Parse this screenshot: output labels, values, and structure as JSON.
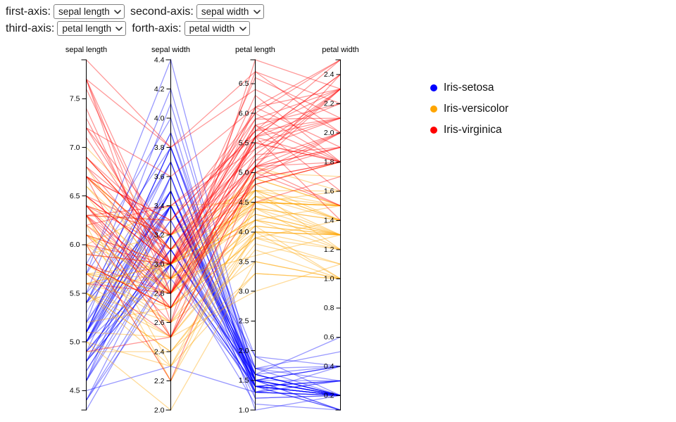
{
  "controls": [
    {
      "label": "first-axis:",
      "selected": "sepal length"
    },
    {
      "label": "second-axis:",
      "selected": "sepal width"
    },
    {
      "label": "third-axis:",
      "selected": "petal length"
    },
    {
      "label": "forth-axis:",
      "selected": "petal width"
    }
  ],
  "legend": {
    "items": [
      {
        "label": "Iris-setosa",
        "color": "#0000ff"
      },
      {
        "label": "Iris-versicolor",
        "color": "#ffa500"
      },
      {
        "label": "Iris-virginica",
        "color": "#ff0000"
      }
    ]
  },
  "chart_data": {
    "type": "parallel-coordinates",
    "grid": false,
    "legend_position": "right",
    "line_opacity": 0.4,
    "axes": [
      {
        "title": "sepal length",
        "domain": [
          4.3,
          7.9
        ],
        "ticks": [
          4.5,
          5.0,
          5.5,
          6.0,
          6.5,
          7.0,
          7.5
        ]
      },
      {
        "title": "sepal width",
        "domain": [
          2.0,
          4.4
        ],
        "ticks": [
          2.0,
          2.2,
          2.4,
          2.6,
          2.8,
          3.0,
          3.2,
          3.4,
          3.6,
          3.8,
          4.0,
          4.2,
          4.4
        ]
      },
      {
        "title": "petal length",
        "domain": [
          1.0,
          6.9
        ],
        "ticks": [
          1.0,
          1.5,
          2.0,
          2.5,
          3.0,
          3.5,
          4.0,
          4.5,
          5.0,
          5.5,
          6.0,
          6.5
        ]
      },
      {
        "title": "petal width",
        "domain": [
          0.1,
          2.5
        ],
        "ticks": [
          0.2,
          0.4,
          0.6,
          0.8,
          1.0,
          1.2,
          1.4,
          1.6,
          1.8,
          2.0,
          2.2,
          2.4
        ]
      }
    ],
    "series": [
      {
        "name": "Iris-setosa",
        "color": "#0000ff",
        "rows": [
          [
            5.1,
            3.5,
            1.4,
            0.2
          ],
          [
            4.9,
            3.0,
            1.4,
            0.2
          ],
          [
            4.7,
            3.2,
            1.3,
            0.2
          ],
          [
            4.6,
            3.1,
            1.5,
            0.2
          ],
          [
            5.0,
            3.6,
            1.4,
            0.2
          ],
          [
            5.4,
            3.9,
            1.7,
            0.4
          ],
          [
            4.6,
            3.4,
            1.4,
            0.3
          ],
          [
            5.0,
            3.4,
            1.5,
            0.2
          ],
          [
            4.4,
            2.9,
            1.4,
            0.2
          ],
          [
            4.9,
            3.1,
            1.5,
            0.1
          ],
          [
            5.4,
            3.7,
            1.5,
            0.2
          ],
          [
            4.8,
            3.4,
            1.6,
            0.2
          ],
          [
            4.8,
            3.0,
            1.4,
            0.1
          ],
          [
            4.3,
            3.0,
            1.1,
            0.1
          ],
          [
            5.8,
            4.0,
            1.2,
            0.2
          ],
          [
            5.7,
            4.4,
            1.5,
            0.4
          ],
          [
            5.4,
            3.9,
            1.3,
            0.4
          ],
          [
            5.1,
            3.5,
            1.4,
            0.3
          ],
          [
            5.7,
            3.8,
            1.7,
            0.3
          ],
          [
            5.1,
            3.8,
            1.5,
            0.3
          ],
          [
            5.4,
            3.4,
            1.7,
            0.2
          ],
          [
            5.1,
            3.7,
            1.5,
            0.4
          ],
          [
            4.6,
            3.6,
            1.0,
            0.2
          ],
          [
            5.1,
            3.3,
            1.7,
            0.5
          ],
          [
            4.8,
            3.4,
            1.9,
            0.2
          ],
          [
            5.0,
            3.0,
            1.6,
            0.2
          ],
          [
            5.0,
            3.4,
            1.6,
            0.4
          ],
          [
            5.2,
            3.5,
            1.5,
            0.2
          ],
          [
            5.2,
            3.4,
            1.4,
            0.2
          ],
          [
            4.7,
            3.2,
            1.6,
            0.2
          ],
          [
            4.8,
            3.1,
            1.6,
            0.2
          ],
          [
            5.4,
            3.4,
            1.5,
            0.4
          ],
          [
            5.2,
            4.1,
            1.5,
            0.1
          ],
          [
            5.5,
            4.2,
            1.4,
            0.2
          ],
          [
            4.9,
            3.1,
            1.5,
            0.2
          ],
          [
            5.0,
            3.2,
            1.2,
            0.2
          ],
          [
            5.5,
            3.5,
            1.3,
            0.2
          ],
          [
            4.9,
            3.6,
            1.4,
            0.1
          ],
          [
            4.4,
            3.0,
            1.3,
            0.2
          ],
          [
            5.1,
            3.4,
            1.5,
            0.2
          ],
          [
            5.0,
            3.5,
            1.3,
            0.3
          ],
          [
            4.5,
            2.3,
            1.3,
            0.3
          ],
          [
            4.4,
            3.2,
            1.3,
            0.2
          ],
          [
            5.0,
            3.5,
            1.6,
            0.6
          ],
          [
            5.1,
            3.8,
            1.9,
            0.4
          ],
          [
            4.8,
            3.0,
            1.4,
            0.3
          ],
          [
            5.1,
            3.8,
            1.6,
            0.2
          ],
          [
            4.6,
            3.2,
            1.4,
            0.2
          ],
          [
            5.3,
            3.7,
            1.5,
            0.2
          ],
          [
            5.0,
            3.3,
            1.4,
            0.2
          ]
        ]
      },
      {
        "name": "Iris-versicolor",
        "color": "#ffa500",
        "rows": [
          [
            7.0,
            3.2,
            4.7,
            1.4
          ],
          [
            6.4,
            3.2,
            4.5,
            1.5
          ],
          [
            6.9,
            3.1,
            4.9,
            1.5
          ],
          [
            5.5,
            2.3,
            4.0,
            1.3
          ],
          [
            6.5,
            2.8,
            4.6,
            1.5
          ],
          [
            5.7,
            2.8,
            4.5,
            1.3
          ],
          [
            6.3,
            3.3,
            4.7,
            1.6
          ],
          [
            4.9,
            2.4,
            3.3,
            1.0
          ],
          [
            6.6,
            2.9,
            4.6,
            1.3
          ],
          [
            5.2,
            2.7,
            3.9,
            1.4
          ],
          [
            5.0,
            2.0,
            3.5,
            1.0
          ],
          [
            5.9,
            3.0,
            4.2,
            1.5
          ],
          [
            6.0,
            2.2,
            4.0,
            1.0
          ],
          [
            6.1,
            2.9,
            4.7,
            1.4
          ],
          [
            5.6,
            2.9,
            3.6,
            1.3
          ],
          [
            6.7,
            3.1,
            4.4,
            1.4
          ],
          [
            5.6,
            3.0,
            4.5,
            1.5
          ],
          [
            5.8,
            2.7,
            4.1,
            1.0
          ],
          [
            6.2,
            2.2,
            4.5,
            1.5
          ],
          [
            5.6,
            2.5,
            3.9,
            1.1
          ],
          [
            5.9,
            3.2,
            4.8,
            1.8
          ],
          [
            6.1,
            2.8,
            4.0,
            1.3
          ],
          [
            6.3,
            2.5,
            4.9,
            1.5
          ],
          [
            6.1,
            2.8,
            4.7,
            1.2
          ],
          [
            6.4,
            2.9,
            4.3,
            1.3
          ],
          [
            6.6,
            3.0,
            4.4,
            1.4
          ],
          [
            6.8,
            2.8,
            4.8,
            1.4
          ],
          [
            6.7,
            3.0,
            5.0,
            1.7
          ],
          [
            6.0,
            2.9,
            4.5,
            1.5
          ],
          [
            5.7,
            2.6,
            3.5,
            1.0
          ],
          [
            5.5,
            2.4,
            3.8,
            1.1
          ],
          [
            5.5,
            2.4,
            3.7,
            1.0
          ],
          [
            5.8,
            2.7,
            3.9,
            1.2
          ],
          [
            6.0,
            2.7,
            5.1,
            1.6
          ],
          [
            5.4,
            3.0,
            4.5,
            1.5
          ],
          [
            6.0,
            3.4,
            4.5,
            1.6
          ],
          [
            6.7,
            3.1,
            4.7,
            1.5
          ],
          [
            6.3,
            2.3,
            4.4,
            1.3
          ],
          [
            5.6,
            3.0,
            4.1,
            1.3
          ],
          [
            5.5,
            2.5,
            4.0,
            1.3
          ],
          [
            5.5,
            2.6,
            4.4,
            1.2
          ],
          [
            6.1,
            3.0,
            4.6,
            1.4
          ],
          [
            5.8,
            2.6,
            4.0,
            1.2
          ],
          [
            5.0,
            2.3,
            3.3,
            1.0
          ],
          [
            5.6,
            2.7,
            4.2,
            1.3
          ],
          [
            5.7,
            3.0,
            4.2,
            1.2
          ],
          [
            5.7,
            2.9,
            4.2,
            1.3
          ],
          [
            6.2,
            2.9,
            4.3,
            1.3
          ],
          [
            5.1,
            2.5,
            3.0,
            1.1
          ],
          [
            5.7,
            2.8,
            4.1,
            1.3
          ]
        ]
      },
      {
        "name": "Iris-virginica",
        "color": "#ff0000",
        "rows": [
          [
            6.3,
            3.3,
            6.0,
            2.5
          ],
          [
            5.8,
            2.7,
            5.1,
            1.9
          ],
          [
            7.1,
            3.0,
            5.9,
            2.1
          ],
          [
            6.3,
            2.9,
            5.6,
            1.8
          ],
          [
            6.5,
            3.0,
            5.8,
            2.2
          ],
          [
            7.6,
            3.0,
            6.6,
            2.1
          ],
          [
            4.9,
            2.5,
            4.5,
            1.7
          ],
          [
            7.3,
            2.9,
            6.3,
            1.8
          ],
          [
            6.7,
            2.5,
            5.8,
            1.8
          ],
          [
            7.2,
            3.6,
            6.1,
            2.5
          ],
          [
            6.5,
            3.2,
            5.1,
            2.0
          ],
          [
            6.4,
            2.7,
            5.3,
            1.9
          ],
          [
            6.8,
            3.0,
            5.5,
            2.1
          ],
          [
            5.7,
            2.5,
            5.0,
            2.0
          ],
          [
            5.8,
            2.8,
            5.1,
            2.4
          ],
          [
            6.4,
            3.2,
            5.3,
            2.3
          ],
          [
            6.5,
            3.0,
            5.5,
            1.8
          ],
          [
            7.7,
            3.8,
            6.7,
            2.2
          ],
          [
            7.7,
            2.6,
            6.9,
            2.3
          ],
          [
            6.0,
            2.2,
            5.0,
            1.5
          ],
          [
            6.9,
            3.2,
            5.7,
            2.3
          ],
          [
            5.6,
            2.8,
            4.9,
            2.0
          ],
          [
            7.7,
            2.8,
            6.7,
            2.0
          ],
          [
            6.3,
            2.7,
            4.9,
            1.8
          ],
          [
            6.7,
            3.3,
            5.7,
            2.1
          ],
          [
            7.2,
            3.2,
            6.0,
            1.8
          ],
          [
            6.2,
            2.8,
            4.8,
            1.8
          ],
          [
            6.1,
            3.0,
            4.9,
            1.8
          ],
          [
            6.4,
            2.8,
            5.6,
            2.1
          ],
          [
            7.2,
            3.0,
            5.8,
            1.6
          ],
          [
            7.4,
            2.8,
            6.1,
            1.9
          ],
          [
            7.9,
            3.8,
            6.4,
            2.0
          ],
          [
            6.4,
            2.8,
            5.6,
            2.2
          ],
          [
            6.3,
            2.8,
            5.1,
            1.5
          ],
          [
            6.1,
            2.6,
            5.6,
            1.4
          ],
          [
            7.7,
            3.0,
            6.1,
            2.3
          ],
          [
            6.3,
            3.4,
            5.6,
            2.4
          ],
          [
            6.4,
            3.1,
            5.5,
            1.8
          ],
          [
            6.0,
            3.0,
            4.8,
            1.8
          ],
          [
            6.9,
            3.1,
            5.4,
            2.1
          ],
          [
            6.7,
            3.1,
            5.6,
            2.4
          ],
          [
            6.9,
            3.1,
            5.1,
            2.3
          ],
          [
            5.8,
            2.7,
            5.1,
            1.9
          ],
          [
            6.8,
            3.2,
            5.9,
            2.3
          ],
          [
            6.7,
            3.3,
            5.7,
            2.5
          ],
          [
            6.7,
            3.0,
            5.2,
            2.3
          ],
          [
            6.3,
            2.5,
            5.0,
            1.9
          ],
          [
            6.5,
            3.0,
            5.2,
            2.0
          ],
          [
            6.2,
            3.4,
            5.4,
            2.3
          ],
          [
            5.9,
            3.0,
            5.1,
            1.8
          ]
        ]
      }
    ]
  }
}
